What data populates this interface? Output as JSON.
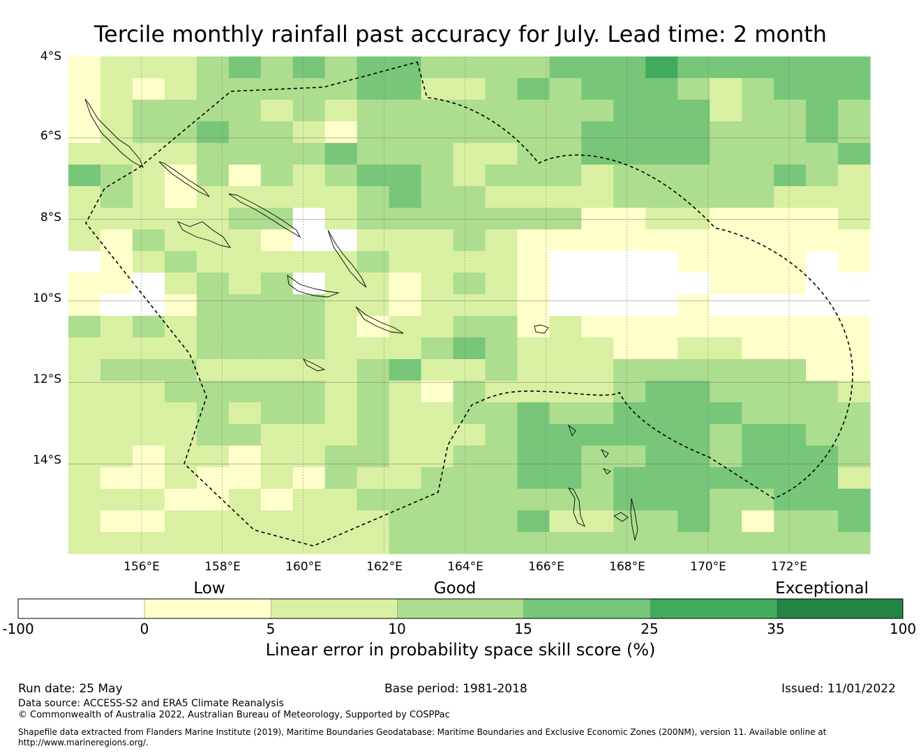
{
  "title": "Tercile monthly rainfall past accuracy for July. Lead time: 2 month",
  "map": {
    "lat_labels": [
      "4°S",
      "6°S",
      "8°S",
      "10°S",
      "12°S",
      "14°S"
    ],
    "lon_labels": [
      "156°E",
      "158°E",
      "160°E",
      "162°E",
      "164°E",
      "166°E",
      "168°E",
      "170°E",
      "172°E"
    ],
    "lat_range": [
      -16.2,
      -4
    ],
    "lon_range": [
      154.2,
      174
    ],
    "grid_resolution_deg": 0.55,
    "skill_grid_note": "coarse reproduction; values are LEPS skill class midpoints",
    "skill_grid": [
      [
        2,
        7,
        7,
        7,
        12,
        17,
        12,
        17,
        12,
        17,
        17,
        12,
        12,
        12,
        12,
        17,
        17,
        17,
        30,
        17,
        17,
        17,
        17,
        17,
        17
      ],
      [
        2,
        7,
        2,
        7,
        12,
        12,
        12,
        12,
        12,
        17,
        17,
        7,
        7,
        12,
        17,
        12,
        17,
        17,
        17,
        12,
        7,
        12,
        17,
        17,
        17
      ],
      [
        2,
        7,
        12,
        12,
        12,
        12,
        7,
        12,
        7,
        12,
        12,
        12,
        12,
        12,
        12,
        12,
        12,
        17,
        17,
        17,
        7,
        12,
        12,
        17,
        12
      ],
      [
        2,
        7,
        12,
        12,
        17,
        12,
        12,
        7,
        2,
        12,
        12,
        12,
        12,
        12,
        12,
        12,
        17,
        17,
        17,
        17,
        12,
        12,
        12,
        17,
        12
      ],
      [
        7,
        7,
        7,
        7,
        12,
        12,
        12,
        12,
        17,
        12,
        12,
        12,
        7,
        7,
        12,
        12,
        17,
        17,
        17,
        17,
        12,
        12,
        12,
        12,
        17
      ],
      [
        17,
        12,
        7,
        2,
        12,
        2,
        12,
        7,
        12,
        17,
        17,
        12,
        7,
        12,
        12,
        12,
        7,
        12,
        12,
        12,
        12,
        12,
        17,
        12,
        7
      ],
      [
        7,
        12,
        7,
        2,
        7,
        7,
        7,
        7,
        7,
        12,
        17,
        12,
        12,
        7,
        7,
        7,
        7,
        12,
        12,
        12,
        12,
        12,
        7,
        7,
        7
      ],
      [
        7,
        7,
        7,
        7,
        7,
        12,
        12,
        -50,
        7,
        12,
        12,
        12,
        12,
        12,
        12,
        12,
        2,
        2,
        7,
        7,
        2,
        2,
        2,
        2,
        7
      ],
      [
        7,
        2,
        12,
        7,
        7,
        7,
        2,
        -50,
        -50,
        7,
        7,
        7,
        12,
        7,
        2,
        2,
        2,
        2,
        2,
        2,
        2,
        2,
        2,
        2,
        2
      ],
      [
        -50,
        2,
        7,
        12,
        7,
        7,
        7,
        7,
        7,
        12,
        7,
        7,
        7,
        7,
        2,
        -50,
        -50,
        -50,
        -50,
        2,
        2,
        2,
        2,
        -50,
        2
      ],
      [
        2,
        2,
        -50,
        7,
        12,
        7,
        12,
        -50,
        7,
        7,
        2,
        7,
        12,
        7,
        2,
        -50,
        -50,
        -50,
        -50,
        -50,
        2,
        2,
        2,
        -50,
        -50
      ],
      [
        2,
        -50,
        -50,
        2,
        12,
        12,
        12,
        12,
        7,
        7,
        2,
        7,
        7,
        7,
        2,
        -50,
        -50,
        -50,
        -50,
        2,
        -50,
        -50,
        -50,
        -50,
        -50
      ],
      [
        12,
        7,
        12,
        7,
        12,
        12,
        12,
        12,
        7,
        2,
        7,
        7,
        12,
        12,
        2,
        7,
        2,
        2,
        2,
        2,
        2,
        2,
        2,
        2,
        2
      ],
      [
        7,
        7,
        7,
        7,
        12,
        12,
        12,
        12,
        7,
        7,
        7,
        12,
        17,
        12,
        7,
        7,
        7,
        2,
        2,
        7,
        7,
        2,
        2,
        2,
        2
      ],
      [
        7,
        12,
        12,
        12,
        7,
        7,
        7,
        7,
        7,
        12,
        17,
        7,
        7,
        12,
        7,
        7,
        7,
        12,
        12,
        12,
        12,
        12,
        12,
        2,
        2
      ],
      [
        7,
        7,
        7,
        12,
        12,
        12,
        12,
        12,
        7,
        12,
        7,
        2,
        12,
        7,
        7,
        7,
        7,
        12,
        17,
        17,
        12,
        12,
        12,
        12,
        7
      ],
      [
        7,
        7,
        7,
        7,
        12,
        7,
        12,
        12,
        7,
        12,
        7,
        7,
        12,
        12,
        17,
        12,
        12,
        17,
        17,
        17,
        17,
        12,
        12,
        12,
        12
      ],
      [
        7,
        7,
        7,
        7,
        12,
        12,
        7,
        7,
        7,
        12,
        7,
        7,
        7,
        12,
        17,
        17,
        17,
        17,
        17,
        17,
        12,
        17,
        17,
        12,
        12
      ],
      [
        7,
        7,
        2,
        7,
        7,
        2,
        7,
        7,
        12,
        12,
        7,
        7,
        12,
        12,
        17,
        17,
        12,
        12,
        17,
        17,
        12,
        17,
        17,
        17,
        12
      ],
      [
        7,
        2,
        2,
        7,
        2,
        2,
        7,
        2,
        12,
        7,
        7,
        12,
        12,
        12,
        17,
        17,
        12,
        17,
        17,
        17,
        17,
        17,
        17,
        17,
        7
      ],
      [
        7,
        7,
        7,
        2,
        2,
        7,
        2,
        7,
        7,
        12,
        12,
        12,
        12,
        12,
        12,
        12,
        12,
        17,
        17,
        17,
        12,
        12,
        17,
        17,
        17
      ],
      [
        7,
        2,
        2,
        7,
        7,
        7,
        7,
        7,
        7,
        7,
        12,
        12,
        12,
        12,
        17,
        7,
        7,
        12,
        12,
        17,
        12,
        2,
        12,
        12,
        17
      ],
      [
        7,
        7,
        7,
        7,
        7,
        7,
        7,
        7,
        7,
        7,
        12,
        12,
        12,
        12,
        12,
        12,
        12,
        12,
        12,
        12,
        12,
        12,
        12,
        12,
        12
      ]
    ]
  },
  "colorbar": {
    "categories": [
      "Low",
      "Good",
      "Exceptional"
    ],
    "ticks": [
      "-100",
      "0",
      "5",
      "10",
      "15",
      "25",
      "35",
      "100"
    ],
    "colors": [
      "#ffffff",
      "#ffffcc",
      "#d9f0a3",
      "#addd8e",
      "#78c679",
      "#41ab5d",
      "#238443"
    ],
    "label": "Linear error in probability space skill score (%)"
  },
  "footer": {
    "run_date": "Run date: 25 May",
    "base_period": "Base period: 1981-2018",
    "issued": "Issued: 11/01/2022",
    "data_source": "Data source: ACCESS-S2 and ERA5 Climate Reanalysis",
    "copyright": "© Commonwealth of Australia 2022, Australian Bureau of Meteorology, Supported by COSPPac",
    "shapefile_note": "Shapefile data extracted from Flanders Marine Institute (2019), Maritime Boundaries Geodatabase: Maritime Boundaries and Exclusive Economic Zones (200NM), version 11. Available online at",
    "shapefile_url": "http://www.marineregions.org/."
  }
}
